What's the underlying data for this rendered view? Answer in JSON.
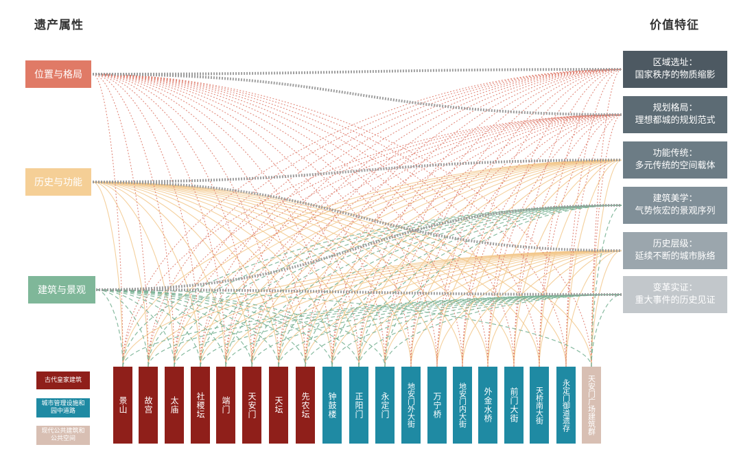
{
  "headers": {
    "left": "遗产属性",
    "right": "价值特征"
  },
  "attributes": [
    {
      "id": "a0",
      "label": "位置与格局",
      "color": "#e07a66"
    },
    {
      "id": "a1",
      "label": "历史与功能",
      "color": "#f5cf96"
    },
    {
      "id": "a2",
      "label": "建筑与景观",
      "color": "#7fb799"
    }
  ],
  "values": [
    {
      "line1": "区域选址：",
      "line2": "国家秩序的物质缩影",
      "color": "#4d5962"
    },
    {
      "line1": "规划格局：",
      "line2": "理想都城的规划范式",
      "color": "#5c6b74"
    },
    {
      "line1": "功能传统：",
      "line2": "多元传统的空间载体",
      "color": "#6c7c85"
    },
    {
      "line1": "建筑美学：",
      "line2": "气势恢宏的景观序列",
      "color": "#808f98"
    },
    {
      "line1": "历史层级：",
      "line2": "延续不断的城市脉络",
      "color": "#9ba6ad"
    },
    {
      "line1": "变革实证：",
      "line2": "重大事件的历史见证",
      "color": "#c2c7cb"
    }
  ],
  "sites": [
    {
      "label": "景山",
      "category": "imperial"
    },
    {
      "label": "故宫",
      "category": "imperial"
    },
    {
      "label": "太庙",
      "category": "imperial"
    },
    {
      "label": "社稷坛",
      "category": "imperial"
    },
    {
      "label": "端门",
      "category": "imperial"
    },
    {
      "label": "天安门",
      "category": "imperial"
    },
    {
      "label": "天坛",
      "category": "imperial"
    },
    {
      "label": "先农坛",
      "category": "imperial"
    },
    {
      "label": "钟鼓楼",
      "category": "urban"
    },
    {
      "label": "正阳门",
      "category": "urban"
    },
    {
      "label": "永定门",
      "category": "urban"
    },
    {
      "label": "地安门外大街",
      "category": "urban"
    },
    {
      "label": "万宁桥",
      "category": "urban"
    },
    {
      "label": "地安门内大街",
      "category": "urban"
    },
    {
      "label": "外金水桥",
      "category": "urban"
    },
    {
      "label": "前门大街",
      "category": "urban"
    },
    {
      "label": "天桥南大街",
      "category": "urban"
    },
    {
      "label": "永定门御道遗存",
      "category": "urban"
    },
    {
      "label": "天安门广场建筑群",
      "category": "modern"
    }
  ],
  "legend": [
    {
      "key": "imperial",
      "label": "古代皇家建筑",
      "color": "#8f1f1a"
    },
    {
      "key": "urban",
      "label": "城市管理设施和园中道路",
      "color": "#1f8aa3"
    },
    {
      "key": "modern",
      "label": "现代公共建筑和公共空间",
      "color": "#d8bfb3"
    }
  ],
  "attribute_value_links": [
    {
      "from": "a0",
      "to": 0
    },
    {
      "from": "a0",
      "to": 1
    },
    {
      "from": "a1",
      "to": 2
    },
    {
      "from": "a1",
      "to": 4
    },
    {
      "from": "a2",
      "to": 3
    },
    {
      "from": "a2",
      "to": 5
    }
  ],
  "site_links": {
    "a0": [
      "景山",
      "故宫",
      "太庙",
      "社稷坛",
      "端门",
      "天安门",
      "天坛",
      "先农坛",
      "钟鼓楼",
      "正阳门",
      "永定门",
      "地安门外大街",
      "万宁桥",
      "地安门内大街",
      "外金水桥",
      "前门大街",
      "天桥南大街",
      "永定门御道遗存",
      "天安门广场建筑群"
    ],
    "a1": [
      "景山",
      "故宫",
      "太庙",
      "社稷坛",
      "端门",
      "天安门",
      "天坛",
      "先农坛",
      "钟鼓楼",
      "正阳门",
      "永定门",
      "地安门外大街",
      "万宁桥",
      "地安门内大街",
      "外金水桥",
      "前门大街",
      "天桥南大街",
      "永定门御道遗存",
      "天安门广场建筑群"
    ],
    "a2": [
      "景山",
      "故宫",
      "太庙",
      "社稷坛",
      "端门",
      "天安门",
      "天坛",
      "先农坛",
      "钟鼓楼",
      "正阳门",
      "永定门",
      "天安门广场建筑群"
    ]
  },
  "link_colors": {
    "a0": "#de7a6a",
    "a1": "#f2c78a",
    "a2": "#79b395",
    "main": "#9a9a9a"
  }
}
